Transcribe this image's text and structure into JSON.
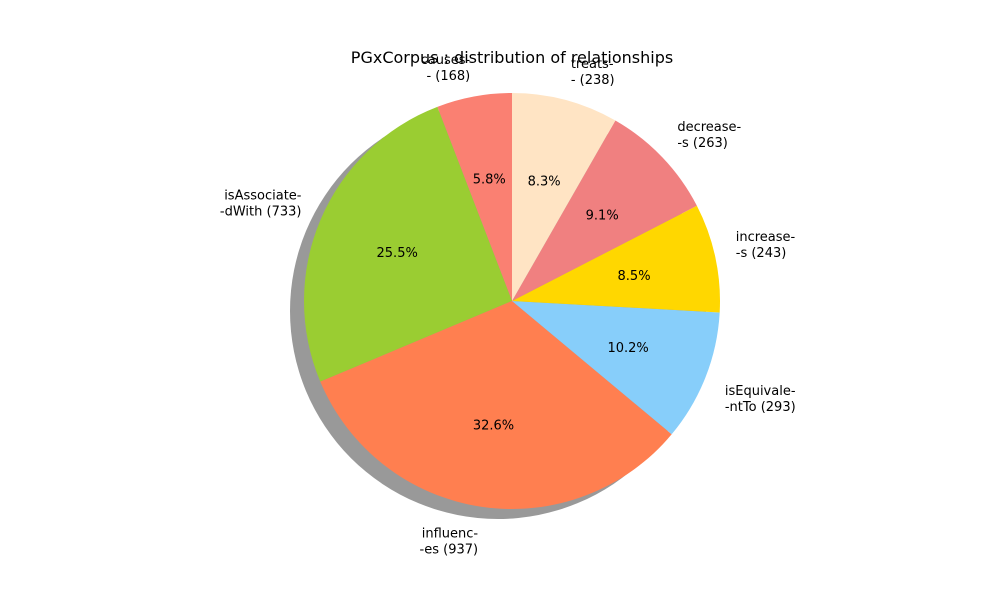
{
  "chart_data": {
    "type": "pie",
    "title": "PGxCorpus : distribution of relationships",
    "start_angle_deg": 90,
    "direction": "counterclockwise",
    "shadow": true,
    "slices": [
      {
        "label_lines": [
          "causes-",
          "-  (168)"
        ],
        "value": 168,
        "pct_label": "5.8%",
        "color": "#FA8072"
      },
      {
        "label_lines": [
          "isAssociate-",
          "-dWith  (733)"
        ],
        "value": 733,
        "pct_label": "25.5%",
        "color": "#9ACD32"
      },
      {
        "label_lines": [
          "influenc-",
          "-es  (937)"
        ],
        "value": 937,
        "pct_label": "32.6%",
        "color": "#FF7F50"
      },
      {
        "label_lines": [
          "isEquivale-",
          "-ntTo  (293)"
        ],
        "value": 293,
        "pct_label": "10.2%",
        "color": "#87CEFA"
      },
      {
        "label_lines": [
          "increase-",
          "-s  (243)"
        ],
        "value": 243,
        "pct_label": "8.5%",
        "color": "#FFD700"
      },
      {
        "label_lines": [
          "decrease-",
          "-s  (263)"
        ],
        "value": 263,
        "pct_label": "9.1%",
        "color": "#F08080"
      },
      {
        "label_lines": [
          "treats-",
          "-  (238)"
        ],
        "value": 238,
        "pct_label": "8.3%",
        "color": "#FFE4C4"
      }
    ]
  }
}
